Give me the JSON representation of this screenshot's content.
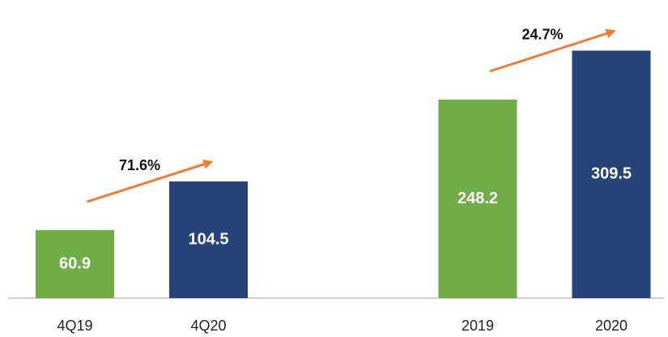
{
  "chart_data": [
    {
      "type": "bar",
      "categories": [
        "4Q19",
        "4Q20"
      ],
      "values": [
        60.9,
        104.5
      ],
      "colors": [
        "#70ad47",
        "#264478"
      ],
      "ylim": [
        0,
        222
      ],
      "annotation": "71.6%"
    },
    {
      "type": "bar",
      "categories": [
        "2019",
        "2020"
      ],
      "values": [
        248.2,
        309.5
      ],
      "colors": [
        "#70ad47",
        "#264478"
      ],
      "ylim": [
        0,
        310
      ],
      "annotation": "24.7%"
    }
  ]
}
